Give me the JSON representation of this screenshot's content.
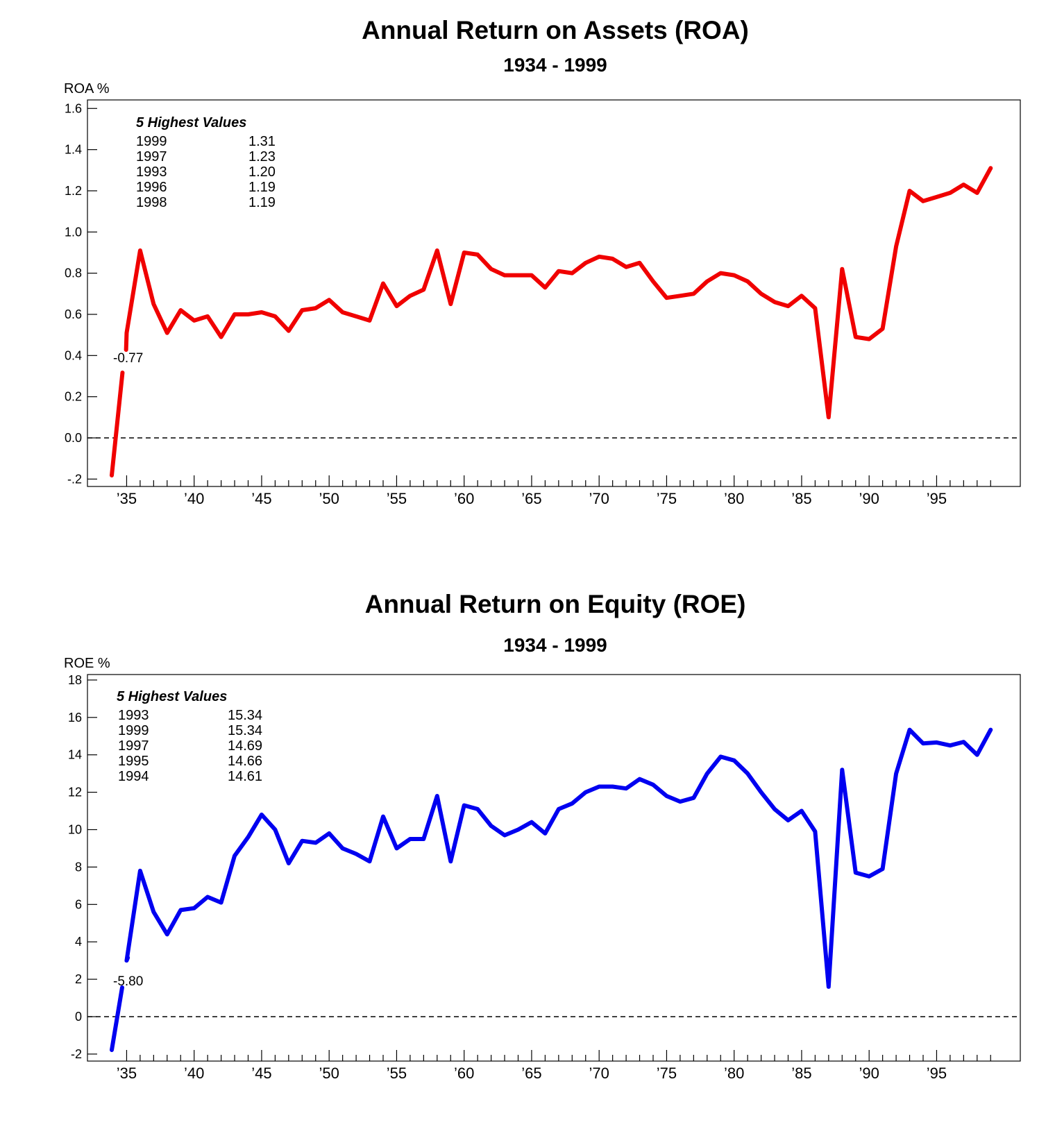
{
  "chart_data": [
    {
      "type": "line",
      "title": "Annual Return on Assets (ROA)",
      "subtitle": "1934 - 1999",
      "ylabel": "ROA %",
      "ylim": [
        -0.2,
        1.6
      ],
      "yticks": [
        "1.6",
        "1.4",
        "1.2",
        "1.0",
        "0.8",
        "0.6",
        "0.4",
        "0.2",
        "0.0",
        "-.2"
      ],
      "xticks": [
        "’35",
        "’40",
        "’45",
        "’50",
        "’55",
        "’60",
        "’65",
        "’70",
        "’75",
        "’80",
        "’85",
        "’90",
        "’95"
      ],
      "axis_break_label": "-0.77",
      "zero_line": "dashed",
      "series": [
        {
          "color": "#f00000",
          "x": [
            1934,
            1935,
            1936,
            1937,
            1938,
            1939,
            1940,
            1941,
            1942,
            1943,
            1944,
            1945,
            1946,
            1947,
            1948,
            1949,
            1950,
            1951,
            1952,
            1953,
            1954,
            1955,
            1956,
            1957,
            1958,
            1959,
            1960,
            1961,
            1962,
            1963,
            1964,
            1965,
            1966,
            1967,
            1968,
            1969,
            1970,
            1971,
            1972,
            1973,
            1974,
            1975,
            1976,
            1977,
            1978,
            1979,
            1980,
            1981,
            1982,
            1983,
            1984,
            1985,
            1986,
            1987,
            1988,
            1989,
            1990,
            1991,
            1992,
            1993,
            1994,
            1995,
            1996,
            1997,
            1998,
            1999
          ],
          "values": [
            -0.77,
            0.51,
            0.91,
            0.65,
            0.51,
            0.62,
            0.57,
            0.59,
            0.49,
            0.6,
            0.6,
            0.61,
            0.59,
            0.52,
            0.62,
            0.63,
            0.67,
            0.61,
            0.59,
            0.57,
            0.75,
            0.64,
            0.69,
            0.72,
            0.91,
            0.65,
            0.9,
            0.89,
            0.82,
            0.79,
            0.79,
            0.79,
            0.73,
            0.81,
            0.8,
            0.85,
            0.88,
            0.87,
            0.83,
            0.85,
            0.76,
            0.68,
            0.69,
            0.7,
            0.76,
            0.8,
            0.79,
            0.76,
            0.7,
            0.66,
            0.64,
            0.69,
            0.63,
            0.1,
            0.82,
            0.49,
            0.48,
            0.53,
            0.93,
            1.2,
            1.15,
            1.17,
            1.19,
            1.23,
            1.19,
            1.31
          ]
        }
      ],
      "highest_values": {
        "heading": "5 Highest Values",
        "rows": [
          {
            "year": "1999",
            "value": "1.31"
          },
          {
            "year": "1997",
            "value": "1.23"
          },
          {
            "year": "1993",
            "value": "1.20"
          },
          {
            "year": "1996",
            "value": "1.19"
          },
          {
            "year": "1998",
            "value": "1.19"
          }
        ]
      }
    },
    {
      "type": "line",
      "title": "Annual Return on Equity (ROE)",
      "subtitle": "1934 - 1999",
      "ylabel": "ROE %",
      "ylim": [
        -2,
        18
      ],
      "yticks": [
        "18",
        "16",
        "14",
        "12",
        "10",
        "8",
        "6",
        "4",
        "2",
        "0",
        "-2"
      ],
      "xticks": [
        "’35",
        "’40",
        "’45",
        "’50",
        "’55",
        "’60",
        "’65",
        "’70",
        "’75",
        "’80",
        "’85",
        "’90",
        "’95"
      ],
      "axis_break_label": "-5.80",
      "zero_line": "dashed",
      "series": [
        {
          "color": "#0000f0",
          "x": [
            1934,
            1935,
            1936,
            1937,
            1938,
            1939,
            1940,
            1941,
            1942,
            1943,
            1944,
            1945,
            1946,
            1947,
            1948,
            1949,
            1950,
            1951,
            1952,
            1953,
            1954,
            1955,
            1956,
            1957,
            1958,
            1959,
            1960,
            1961,
            1962,
            1963,
            1964,
            1965,
            1966,
            1967,
            1968,
            1969,
            1970,
            1971,
            1972,
            1973,
            1974,
            1975,
            1976,
            1977,
            1978,
            1979,
            1980,
            1981,
            1982,
            1983,
            1984,
            1985,
            1986,
            1987,
            1988,
            1989,
            1990,
            1991,
            1992,
            1993,
            1994,
            1995,
            1996,
            1997,
            1998,
            1999
          ],
          "values": [
            -5.8,
            3.0,
            7.8,
            5.6,
            4.4,
            5.7,
            5.8,
            6.4,
            6.1,
            8.6,
            9.6,
            10.8,
            10.0,
            8.2,
            9.4,
            9.3,
            9.8,
            9.0,
            8.7,
            8.3,
            10.7,
            9.0,
            9.5,
            9.5,
            11.8,
            8.3,
            11.3,
            11.1,
            10.2,
            9.7,
            10.0,
            10.4,
            9.8,
            11.1,
            11.4,
            12.0,
            12.3,
            12.3,
            12.2,
            12.7,
            12.4,
            11.8,
            11.5,
            11.7,
            13.0,
            13.9,
            13.7,
            13.0,
            12.0,
            11.1,
            10.5,
            11.0,
            9.9,
            1.6,
            13.2,
            7.7,
            7.5,
            7.9,
            13.0,
            15.34,
            14.61,
            14.66,
            14.5,
            14.69,
            14.0,
            15.34
          ]
        }
      ],
      "highest_values": {
        "heading": "5 Highest Values",
        "rows": [
          {
            "year": "1993",
            "value": "15.34"
          },
          {
            "year": "1999",
            "value": "15.34"
          },
          {
            "year": "1997",
            "value": "14.69"
          },
          {
            "year": "1995",
            "value": "14.66"
          },
          {
            "year": "1994",
            "value": "14.61"
          }
        ]
      }
    }
  ]
}
